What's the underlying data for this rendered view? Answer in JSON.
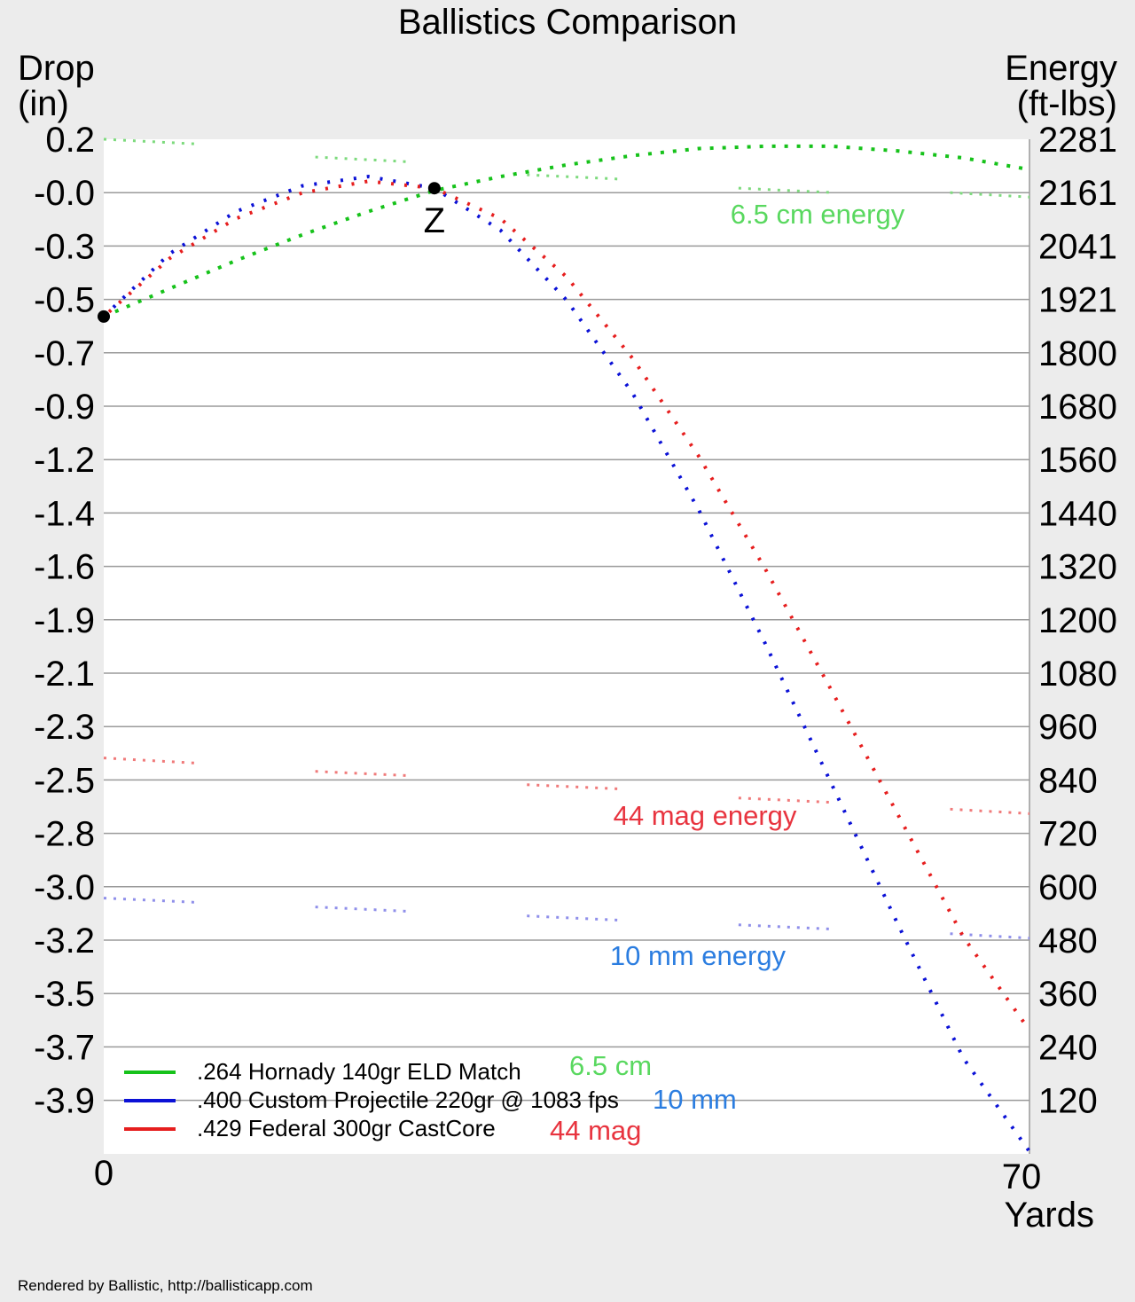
{
  "chart_data": {
    "type": "line",
    "title": "Ballistics Comparison",
    "left_axis": {
      "label_line1": "Drop",
      "label_line2": "(in)",
      "ticks": [
        "0.2",
        "-0.0",
        "-0.3",
        "-0.5",
        "-0.7",
        "-0.9",
        "-1.2",
        "-1.4",
        "-1.6",
        "-1.9",
        "-2.1",
        "-2.3",
        "-2.5",
        "-2.8",
        "-3.0",
        "-3.2",
        "-3.5",
        "-3.7",
        "-3.9"
      ],
      "ylim": [
        -4.11,
        0.24
      ]
    },
    "right_axis": {
      "label_line1": "Energy",
      "label_line2": "(ft-lbs)",
      "ticks": [
        "2281",
        "2161",
        "2041",
        "1921",
        "1800",
        "1680",
        "1560",
        "1440",
        "1320",
        "1200",
        "1080",
        "960",
        "840",
        "720",
        "600",
        "480",
        "360",
        "240",
        "120"
      ],
      "ylim": [
        0,
        2281
      ]
    },
    "x_axis": {
      "label": "Yards",
      "ticks": [
        "0",
        "70"
      ],
      "xlim": [
        0,
        70
      ]
    },
    "grid": true,
    "markers": [
      {
        "label": "",
        "x": 0,
        "y": -0.52
      },
      {
        "label": "Z",
        "x": 25,
        "y": 0.03
      }
    ],
    "energy_labels": [
      {
        "text": "6.5 cm energy",
        "color": "#59d85f"
      },
      {
        "text": "44 mag energy",
        "color": "#e8343f"
      },
      {
        "text": "10 mm energy",
        "color": "#2b7de0"
      }
    ],
    "legend": [
      {
        "name": ".264 Hornady 140gr ELD Match",
        "short": "6.5 cm",
        "color": "#16c21a",
        "short_color": "#59d85f"
      },
      {
        "name": ".400 Custom Projectile 220gr @ 1083 fps",
        "short": "10 mm",
        "color": "#0b11d6",
        "short_color": "#2b7de0"
      },
      {
        "name": ".429 Federal 300gr CastCore",
        "short": "44 mag",
        "color": "#e61e1e",
        "short_color": "#e8343f"
      }
    ],
    "series": [
      {
        "name": ".264 Hornady 140gr ELD Match",
        "color": "#16c21a",
        "x": [
          0,
          5,
          10,
          15,
          20,
          25,
          30,
          35,
          40,
          45,
          50,
          55,
          60,
          65,
          70
        ],
        "y": [
          -0.52,
          -0.4,
          -0.28,
          -0.17,
          -0.07,
          0.02,
          0.08,
          0.13,
          0.17,
          0.2,
          0.21,
          0.21,
          0.19,
          0.16,
          0.11
        ]
      },
      {
        "name": ".400 Custom Projectile 220gr @ 1083 fps",
        "color": "#0b11d6",
        "x": [
          0,
          5,
          10,
          15,
          20,
          25,
          30,
          35,
          40,
          45,
          50,
          55,
          60,
          65,
          70
        ],
        "y": [
          -0.52,
          -0.25,
          -0.07,
          0.04,
          0.08,
          0.03,
          -0.15,
          -0.45,
          -0.85,
          -1.35,
          -1.92,
          -2.52,
          -3.12,
          -3.7,
          -4.1
        ]
      },
      {
        "name": ".429 Federal 300gr CastCore",
        "color": "#e61e1e",
        "x": [
          0,
          5,
          10,
          15,
          20,
          25,
          30,
          35,
          40,
          45,
          50,
          55,
          60,
          65,
          70
        ],
        "y": [
          -0.52,
          -0.27,
          -0.1,
          0.01,
          0.06,
          0.03,
          -0.1,
          -0.35,
          -0.7,
          -1.12,
          -1.6,
          -2.12,
          -2.65,
          -3.18,
          -3.58
        ]
      }
    ],
    "energy_series": [
      {
        "name": "6.5 cm energy",
        "color": "#7dda7d",
        "segments": [
          [
            2281,
            2270
          ],
          [
            2241,
            2230
          ],
          [
            2201,
            2191
          ],
          [
            2171,
            2161
          ],
          [
            2161,
            2151
          ]
        ]
      },
      {
        "name": "44 mag energy",
        "color": "#f07a7a",
        "segments": [
          [
            890,
            878
          ],
          [
            860,
            850
          ],
          [
            830,
            820
          ],
          [
            800,
            790
          ],
          [
            775,
            765
          ]
        ]
      },
      {
        "name": "10 mm energy",
        "color": "#8f8fea",
        "segments": [
          [
            575,
            565
          ],
          [
            555,
            545
          ],
          [
            535,
            525
          ],
          [
            515,
            505
          ],
          [
            495,
            485
          ]
        ]
      }
    ]
  },
  "footer": "Rendered by Ballistic, http://ballisticapp.com"
}
